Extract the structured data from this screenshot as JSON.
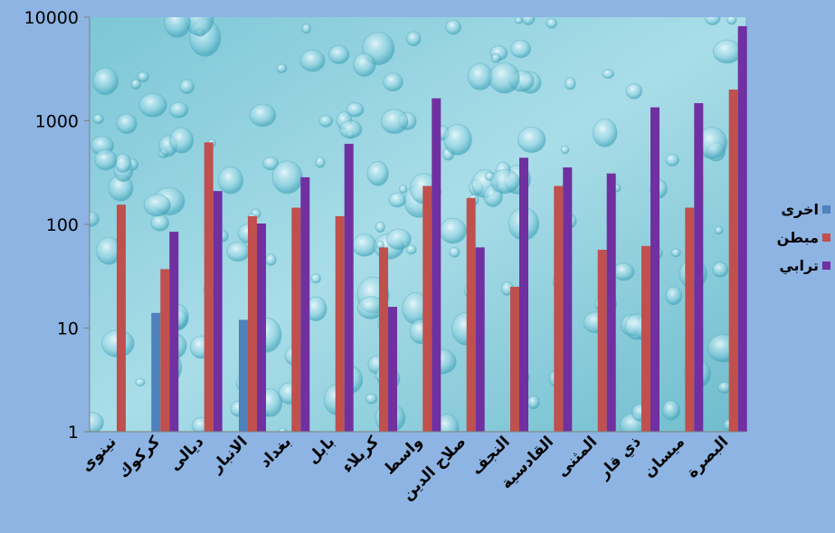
{
  "chart_data": {
    "type": "bar",
    "y_scale": "log",
    "ylim": [
      1,
      10000
    ],
    "y_ticks": [
      "1",
      "10",
      "100",
      "1000",
      "10000"
    ],
    "grid": false,
    "legend_position": "right",
    "categories": [
      "نينوى",
      "كركوك",
      "ديالى",
      "الانبار",
      "بغداد",
      "بابل",
      "كربلاء",
      "واسط",
      "صلاح الدين",
      "النجف",
      "القادسية",
      "المثنى",
      "ذي قار",
      "ميسان",
      "البصرة"
    ],
    "series": [
      {
        "name": "اخرى",
        "color": "#4f81bd",
        "values": [
          null,
          14,
          null,
          12,
          null,
          null,
          null,
          null,
          null,
          null,
          null,
          null,
          null,
          null,
          null
        ]
      },
      {
        "name": "مبطن",
        "color": "#c0504d",
        "values": [
          155,
          37,
          620,
          120,
          145,
          120,
          60,
          235,
          180,
          25,
          235,
          57,
          62,
          145,
          2000
        ]
      },
      {
        "name": "ترابي",
        "color": "#7030a0",
        "values": [
          null,
          85,
          210,
          102,
          285,
          600,
          16,
          1650,
          60,
          440,
          355,
          310,
          1350,
          1480,
          8200
        ]
      }
    ]
  }
}
